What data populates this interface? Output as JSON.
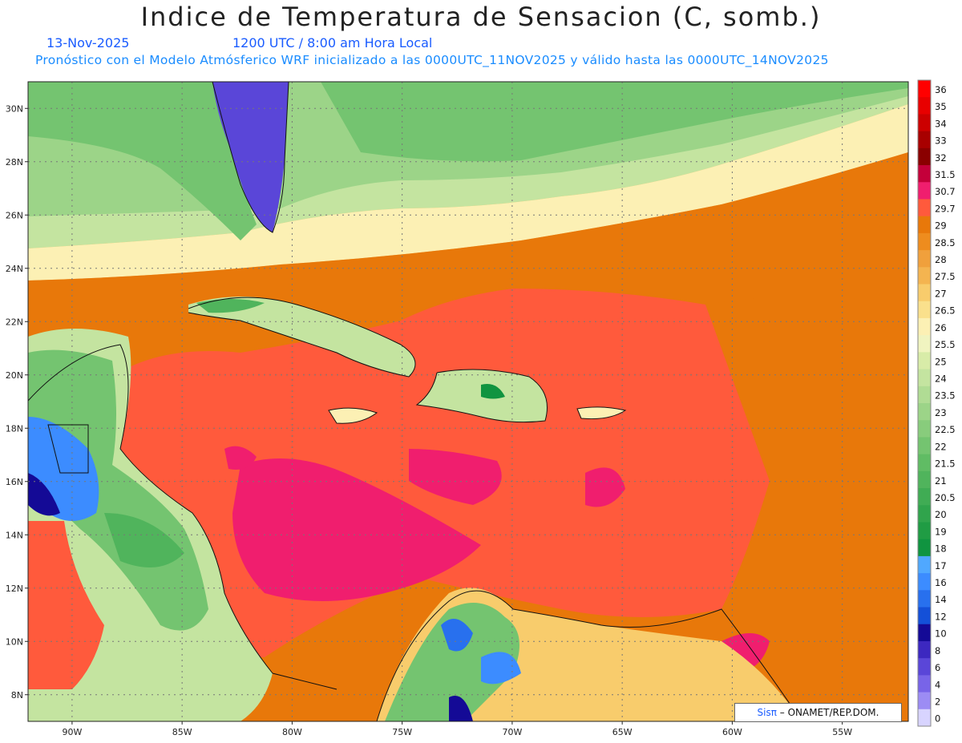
{
  "title": "Indice de Temperatura de Sensacion (C, somb.)",
  "date": "13-Nov-2025",
  "time": "1200 UTC / 8:00 am Hora Local",
  "forecast": "Pronóstico con el Modelo Atmósferico WRF inicializado a las 0000UTC_11NOV2025 y válido hasta las  0000UTC_14NOV2025",
  "credit": {
    "logo": "Sisπ",
    "text": "– ONAMET/REP.DOM."
  },
  "map": {
    "lon_range": [
      -92,
      -52
    ],
    "lat_range": [
      7,
      31
    ],
    "lat_ticks": [
      "30N",
      "28N",
      "26N",
      "24N",
      "22N",
      "20N",
      "18N",
      "16N",
      "14N",
      "12N",
      "10N",
      "8N"
    ],
    "lon_ticks": [
      "90W",
      "85W",
      "80W",
      "75W",
      "70W",
      "65W",
      "60W",
      "55W"
    ],
    "grid": true
  },
  "colorbar": {
    "labels": [
      "36",
      "35",
      "34",
      "33",
      "32",
      "31.5",
      "30.7",
      "29.7",
      "29",
      "28.5",
      "28",
      "27.5",
      "27",
      "26.5",
      "26",
      "25.5",
      "25",
      "24",
      "23.5",
      "23",
      "22.5",
      "22",
      "21.5",
      "21",
      "20.5",
      "20",
      "19",
      "18",
      "17",
      "16",
      "14",
      "12",
      "10",
      "8",
      "6",
      "4",
      "2",
      "0"
    ],
    "colors": [
      "#ff0000",
      "#e80000",
      "#cc0000",
      "#a80000",
      "#8a0000",
      "#c4003a",
      "#f01e6e",
      "#ff5a3c",
      "#e8780a",
      "#ee8c1e",
      "#f0a03c",
      "#f4b450",
      "#f8cc6c",
      "#fae08c",
      "#fcf0b4",
      "#f0f4c0",
      "#d8eca8",
      "#c4e4a0",
      "#b0dc94",
      "#9cd488",
      "#88cc7c",
      "#74c470",
      "#60bc64",
      "#50b45c",
      "#40ac54",
      "#30a44c",
      "#209c44",
      "#109440",
      "#50a8ff",
      "#3c8cff",
      "#2870ee",
      "#1450d8",
      "#140a96",
      "#3c28c0",
      "#5a46d8",
      "#7864e8",
      "#9c8cf4",
      "#d8d4ff"
    ]
  }
}
